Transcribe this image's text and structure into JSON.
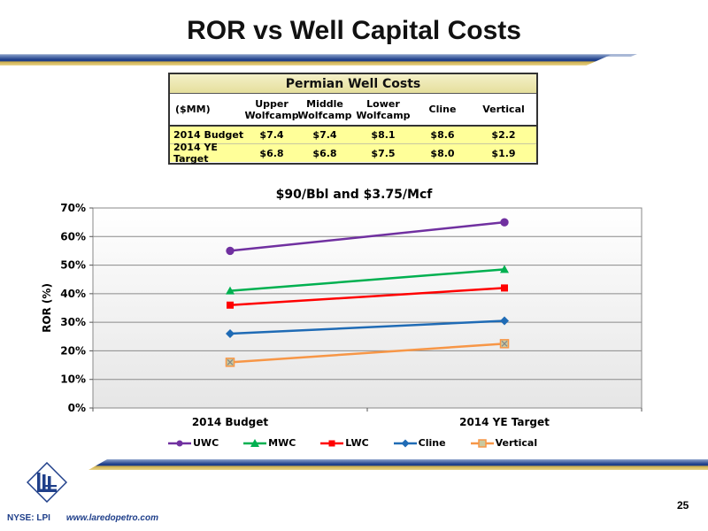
{
  "slide": {
    "title": "ROR vs Well Capital Costs",
    "page_number": "25",
    "footer_ticker": "NYSE: LPI",
    "footer_url": "www.laredopetro.com"
  },
  "table": {
    "title": "Permian Well Costs",
    "headers": [
      "($MM)",
      "Upper\nWolfcamp",
      "Middle\nWolfcamp",
      "Lower\nWolfcamp",
      "Cline",
      "Vertical"
    ],
    "rows": [
      [
        "2014 Budget",
        "$7.4",
        "$7.4",
        "$8.1",
        "$8.6",
        "$2.2"
      ],
      [
        "2014 YE Target",
        "$6.8",
        "$6.8",
        "$7.5",
        "$8.0",
        "$1.9"
      ]
    ]
  },
  "chart_data": {
    "type": "line",
    "title": "$90/Bbl and $3.75/Mcf",
    "xlabel": "",
    "ylabel": "ROR (%)",
    "categories": [
      "2014 Budget",
      "2014 YE Target"
    ],
    "ylim": [
      0,
      70
    ],
    "yticks": [
      "0%",
      "10%",
      "20%",
      "30%",
      "40%",
      "50%",
      "60%",
      "70%"
    ],
    "grid": true,
    "legend_position": "bottom",
    "series": [
      {
        "name": "UWC",
        "values": [
          55,
          65
        ],
        "color": "#7030a0",
        "marker": "circle"
      },
      {
        "name": "MWC",
        "values": [
          41,
          48.5
        ],
        "color": "#00b050",
        "marker": "triangle"
      },
      {
        "name": "LWC",
        "values": [
          36,
          42
        ],
        "color": "#ff0000",
        "marker": "square"
      },
      {
        "name": "Cline",
        "values": [
          26,
          30.5
        ],
        "color": "#1f6bb5",
        "marker": "diamond"
      },
      {
        "name": "Vertical",
        "values": [
          16,
          22.5
        ],
        "color": "#f79646",
        "marker": "x-square"
      }
    ]
  }
}
